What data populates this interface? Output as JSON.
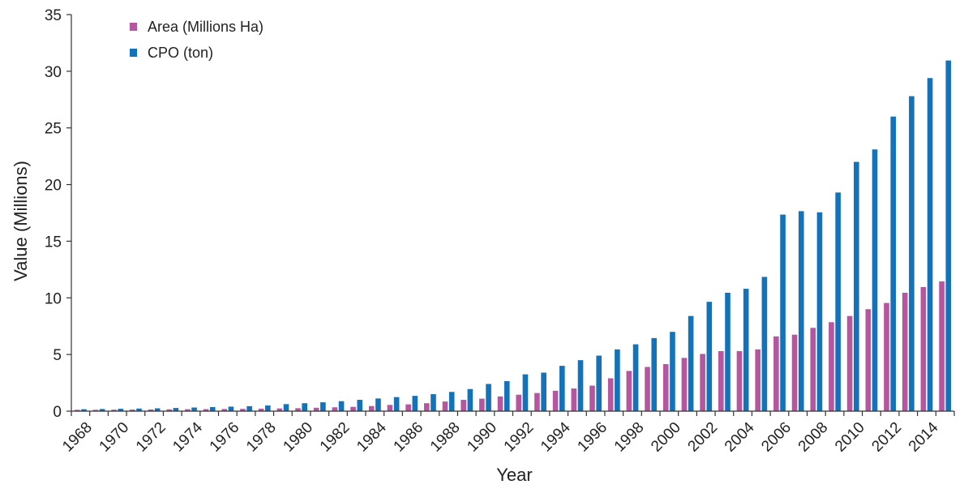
{
  "chart_data": {
    "type": "bar",
    "xlabel": "Year",
    "ylabel": "Value (Millions)",
    "ylim": [
      0,
      35
    ],
    "yticks": [
      0,
      5,
      10,
      15,
      20,
      25,
      30,
      35
    ],
    "grid": false,
    "legend_position": "top-left",
    "categories": [
      "1968",
      "1969",
      "1970",
      "1971",
      "1972",
      "1973",
      "1974",
      "1975",
      "1976",
      "1977",
      "1978",
      "1979",
      "1980",
      "1981",
      "1982",
      "1983",
      "1984",
      "1985",
      "1986",
      "1987",
      "1988",
      "1989",
      "1990",
      "1991",
      "1992",
      "1993",
      "1994",
      "1995",
      "1996",
      "1997",
      "1998",
      "1999",
      "2000",
      "2001",
      "2002",
      "2003",
      "2004",
      "2005",
      "2006",
      "2007",
      "2008",
      "2009",
      "2010",
      "2011",
      "2012",
      "2013",
      "2014",
      "2015"
    ],
    "tick_labels": [
      "1968",
      "1970",
      "1972",
      "1974",
      "1976",
      "1978",
      "1980",
      "1982",
      "1984",
      "1986",
      "1988",
      "1990",
      "1992",
      "1994",
      "1996",
      "1998",
      "2000",
      "2002",
      "2004",
      "2006",
      "2008",
      "2010",
      "2012",
      "2014"
    ],
    "series": [
      {
        "name": "Area (Millions Ha)",
        "color": "#b5579e",
        "values": [
          0.12,
          0.12,
          0.13,
          0.14,
          0.15,
          0.16,
          0.17,
          0.18,
          0.19,
          0.2,
          0.22,
          0.24,
          0.26,
          0.3,
          0.34,
          0.38,
          0.45,
          0.55,
          0.6,
          0.7,
          0.85,
          1.0,
          1.1,
          1.3,
          1.45,
          1.6,
          1.8,
          2.0,
          2.25,
          2.9,
          3.55,
          3.9,
          4.15,
          4.7,
          5.05,
          5.3,
          5.3,
          5.45,
          6.6,
          6.75,
          7.35,
          7.85,
          8.4,
          9.0,
          9.55,
          10.45,
          10.95,
          11.45
        ]
      },
      {
        "name": "CPO (ton)",
        "color": "#1472b8",
        "values": [
          0.17,
          0.19,
          0.21,
          0.23,
          0.25,
          0.28,
          0.32,
          0.36,
          0.4,
          0.44,
          0.5,
          0.62,
          0.7,
          0.78,
          0.88,
          1.0,
          1.12,
          1.24,
          1.35,
          1.5,
          1.7,
          1.95,
          2.4,
          2.65,
          3.25,
          3.4,
          4.0,
          4.5,
          4.9,
          5.45,
          5.9,
          6.45,
          7.0,
          8.4,
          9.65,
          10.45,
          10.8,
          11.85,
          17.35,
          17.65,
          17.55,
          19.3,
          22.0,
          23.1,
          26.0,
          27.8,
          29.4,
          30.95
        ]
      }
    ]
  }
}
